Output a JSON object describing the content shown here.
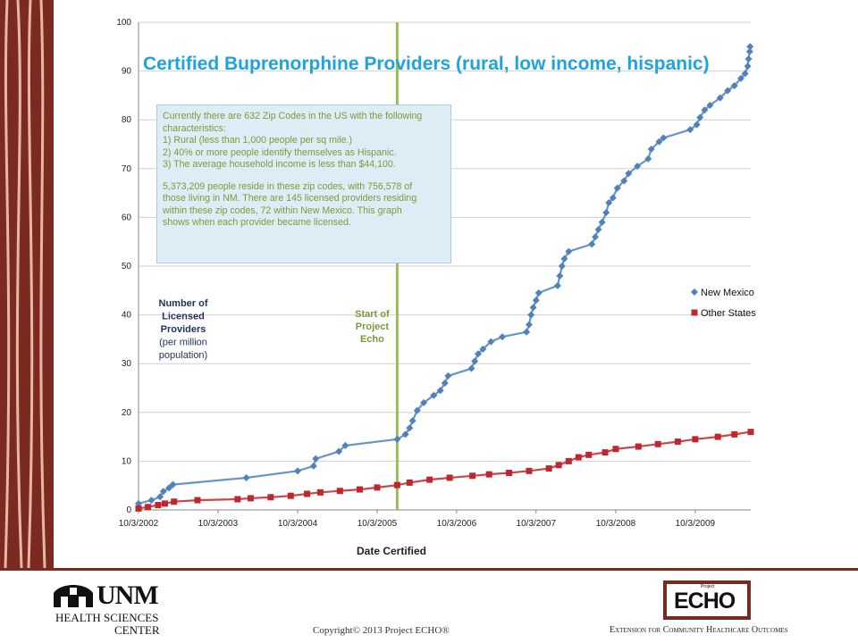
{
  "chart_data": {
    "type": "line",
    "title": "Certified Buprenorphine Providers (rural, low income, hispanic)",
    "xlabel": "Date Certified",
    "ylabel_lines": [
      "Number of",
      "Licensed",
      "Providers",
      "(per million",
      "population)"
    ],
    "ylim": [
      0,
      100
    ],
    "yticks": [
      0,
      10,
      20,
      30,
      40,
      50,
      60,
      70,
      80,
      90,
      100
    ],
    "xlim": [
      "2002-10-03",
      "2010-06-15"
    ],
    "xticks": [
      {
        "date": "2002-10-03",
        "label": "10/3/2002"
      },
      {
        "date": "2003-10-03",
        "label": "10/3/2003"
      },
      {
        "date": "2004-10-03",
        "label": "10/3/2004"
      },
      {
        "date": "2005-10-03",
        "label": "10/3/2005"
      },
      {
        "date": "2006-10-03",
        "label": "10/3/2006"
      },
      {
        "date": "2007-10-03",
        "label": "10/3/2007"
      },
      {
        "date": "2008-10-03",
        "label": "10/3/2008"
      },
      {
        "date": "2009-10-03",
        "label": "10/3/2009"
      }
    ],
    "legend_position": "right",
    "grid": "horizontal",
    "series": [
      {
        "name": "New Mexico",
        "color": "#4f81bd",
        "marker": "diamond",
        "points": [
          [
            "2002-10-03",
            1.3
          ],
          [
            "2002-12-01",
            2.0
          ],
          [
            "2003-01-10",
            2.7
          ],
          [
            "2003-01-25",
            3.8
          ],
          [
            "2003-02-20",
            4.5
          ],
          [
            "2003-03-10",
            5.2
          ],
          [
            "2004-02-10",
            6.6
          ],
          [
            "2004-10-03",
            8.0
          ],
          [
            "2004-12-15",
            9.0
          ],
          [
            "2004-12-25",
            10.5
          ],
          [
            "2005-04-10",
            12.0
          ],
          [
            "2005-05-10",
            13.2
          ],
          [
            "2006-01-03",
            14.5
          ],
          [
            "2006-02-10",
            15.5
          ],
          [
            "2006-03-01",
            16.8
          ],
          [
            "2006-03-15",
            18.3
          ],
          [
            "2006-04-05",
            20.4
          ],
          [
            "2006-05-05",
            22.0
          ],
          [
            "2006-06-20",
            23.5
          ],
          [
            "2006-07-20",
            24.5
          ],
          [
            "2006-08-10",
            26.0
          ],
          [
            "2006-08-25",
            27.5
          ],
          [
            "2006-12-10",
            29.0
          ],
          [
            "2006-12-25",
            30.5
          ],
          [
            "2007-01-10",
            32.0
          ],
          [
            "2007-02-01",
            33.0
          ],
          [
            "2007-03-10",
            34.5
          ],
          [
            "2007-05-01",
            35.5
          ],
          [
            "2007-08-20",
            36.5
          ],
          [
            "2007-09-01",
            38.0
          ],
          [
            "2007-09-10",
            40.0
          ],
          [
            "2007-09-20",
            41.5
          ],
          [
            "2007-10-03",
            43.0
          ],
          [
            "2007-10-15",
            44.5
          ],
          [
            "2008-01-10",
            46.0
          ],
          [
            "2008-01-20",
            48.0
          ],
          [
            "2008-01-30",
            50.0
          ],
          [
            "2008-02-10",
            51.5
          ],
          [
            "2008-03-01",
            53.0
          ],
          [
            "2008-06-15",
            54.5
          ],
          [
            "2008-07-01",
            56.0
          ],
          [
            "2008-07-15",
            57.5
          ],
          [
            "2008-08-01",
            59.0
          ],
          [
            "2008-08-20",
            61.0
          ],
          [
            "2008-09-01",
            63.0
          ],
          [
            "2008-09-20",
            64.0
          ],
          [
            "2008-10-10",
            66.0
          ],
          [
            "2008-11-10",
            67.5
          ],
          [
            "2008-12-01",
            69.0
          ],
          [
            "2009-01-10",
            70.5
          ],
          [
            "2009-03-01",
            72.0
          ],
          [
            "2009-03-15",
            74.0
          ],
          [
            "2009-04-20",
            75.5
          ],
          [
            "2009-05-10",
            76.3
          ],
          [
            "2009-09-10",
            78.0
          ],
          [
            "2009-10-10",
            79.0
          ],
          [
            "2009-10-25",
            80.5
          ],
          [
            "2009-11-15",
            82.0
          ],
          [
            "2009-12-10",
            83.0
          ],
          [
            "2010-01-25",
            84.5
          ],
          [
            "2010-03-01",
            86.0
          ],
          [
            "2010-04-01",
            87.0
          ],
          [
            "2010-05-01",
            88.5
          ],
          [
            "2010-05-20",
            89.5
          ],
          [
            "2010-06-01",
            91.0
          ],
          [
            "2010-06-05",
            92.5
          ],
          [
            "2010-06-10",
            94.0
          ],
          [
            "2010-06-12",
            95.0
          ]
        ]
      },
      {
        "name": "Other States",
        "color": "#c0272d",
        "marker": "square",
        "points": [
          [
            "2002-10-03",
            0.3
          ],
          [
            "2002-11-15",
            0.6
          ],
          [
            "2003-01-01",
            1.0
          ],
          [
            "2003-02-01",
            1.3
          ],
          [
            "2003-03-15",
            1.7
          ],
          [
            "2003-07-01",
            2.0
          ],
          [
            "2004-01-01",
            2.2
          ],
          [
            "2004-03-01",
            2.4
          ],
          [
            "2004-06-01",
            2.6
          ],
          [
            "2004-09-01",
            2.9
          ],
          [
            "2004-11-15",
            3.3
          ],
          [
            "2005-01-15",
            3.6
          ],
          [
            "2005-04-15",
            3.9
          ],
          [
            "2005-07-15",
            4.2
          ],
          [
            "2005-10-03",
            4.6
          ],
          [
            "2006-01-03",
            5.1
          ],
          [
            "2006-03-01",
            5.6
          ],
          [
            "2006-06-01",
            6.2
          ],
          [
            "2006-09-01",
            6.6
          ],
          [
            "2006-12-15",
            7.0
          ],
          [
            "2007-03-01",
            7.3
          ],
          [
            "2007-06-01",
            7.6
          ],
          [
            "2007-09-01",
            8.0
          ],
          [
            "2007-12-01",
            8.5
          ],
          [
            "2008-01-15",
            9.2
          ],
          [
            "2008-03-01",
            10.0
          ],
          [
            "2008-04-15",
            10.8
          ],
          [
            "2008-06-01",
            11.3
          ],
          [
            "2008-08-15",
            11.8
          ],
          [
            "2008-10-03",
            12.5
          ],
          [
            "2009-01-15",
            13.0
          ],
          [
            "2009-04-15",
            13.5
          ],
          [
            "2009-07-15",
            14.0
          ],
          [
            "2009-10-03",
            14.5
          ],
          [
            "2010-01-15",
            15.0
          ],
          [
            "2010-04-01",
            15.5
          ],
          [
            "2010-06-15",
            16.0
          ]
        ]
      }
    ],
    "annotations": [
      {
        "date": "2006-01-03",
        "label_lines": [
          "Start of",
          "Project",
          "Echo"
        ],
        "color": "#9bbb59"
      }
    ]
  },
  "info_box": {
    "line1": "Currently there are 632 Zip Codes in the US with the following",
    "line2": "characteristics:",
    "line3": "1) Rural (less than 1,000 people per sq mile.)",
    "line4": "2) 40% or more people identify themselves as Hispanic.",
    "line5": "3) The average household income is less than $44,100.",
    "line6": "5,373,209 people reside in these zip codes, with 756,578 of",
    "line7": "those living in NM.  There are 145 licensed providers residing",
    "line8": "within these zip codes, 72 within New Mexico.   This graph",
    "line9": "shows when each provider became licensed."
  },
  "footer": {
    "unm_name": "UNM",
    "unm_line1": "HEALTH SCIENCES",
    "unm_line2": "CENTER",
    "copyright": "Copyright© 2013 Project ECHO®",
    "echo_small": "Project",
    "echo_word": "ECHO",
    "tagline": "Extension for Community Healthcare Outcomes"
  },
  "colors": {
    "frame": "#7a2a20",
    "title": "#1fa3dc"
  }
}
